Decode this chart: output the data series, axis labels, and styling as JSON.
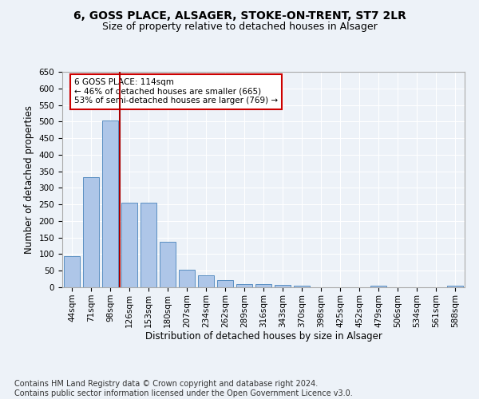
{
  "title_line1": "6, GOSS PLACE, ALSAGER, STOKE-ON-TRENT, ST7 2LR",
  "title_line2": "Size of property relative to detached houses in Alsager",
  "xlabel": "Distribution of detached houses by size in Alsager",
  "ylabel": "Number of detached properties",
  "bar_labels": [
    "44sqm",
    "71sqm",
    "98sqm",
    "126sqm",
    "153sqm",
    "180sqm",
    "207sqm",
    "234sqm",
    "262sqm",
    "289sqm",
    "316sqm",
    "343sqm",
    "370sqm",
    "398sqm",
    "425sqm",
    "452sqm",
    "479sqm",
    "506sqm",
    "534sqm",
    "561sqm",
    "588sqm"
  ],
  "bar_values": [
    95,
    333,
    503,
    255,
    255,
    138,
    53,
    37,
    22,
    10,
    10,
    7,
    5,
    0,
    0,
    0,
    5,
    0,
    0,
    0,
    5
  ],
  "bar_color": "#aec6e8",
  "bar_edge_color": "#5a8fc2",
  "vline_x": 2.5,
  "vline_color": "#aa0000",
  "annotation_text": "6 GOSS PLACE: 114sqm\n← 46% of detached houses are smaller (665)\n53% of semi-detached houses are larger (769) →",
  "annotation_box_color": "white",
  "annotation_box_edge": "#cc0000",
  "ylim": [
    0,
    650
  ],
  "yticks": [
    0,
    50,
    100,
    150,
    200,
    250,
    300,
    350,
    400,
    450,
    500,
    550,
    600,
    650
  ],
  "footer_line1": "Contains HM Land Registry data © Crown copyright and database right 2024.",
  "footer_line2": "Contains public sector information licensed under the Open Government Licence v3.0.",
  "bg_color": "#edf2f8",
  "plot_bg_color": "#edf2f8",
  "grid_color": "white",
  "title_fontsize": 10,
  "subtitle_fontsize": 9,
  "axis_label_fontsize": 8.5,
  "tick_fontsize": 7.5,
  "footer_fontsize": 7
}
